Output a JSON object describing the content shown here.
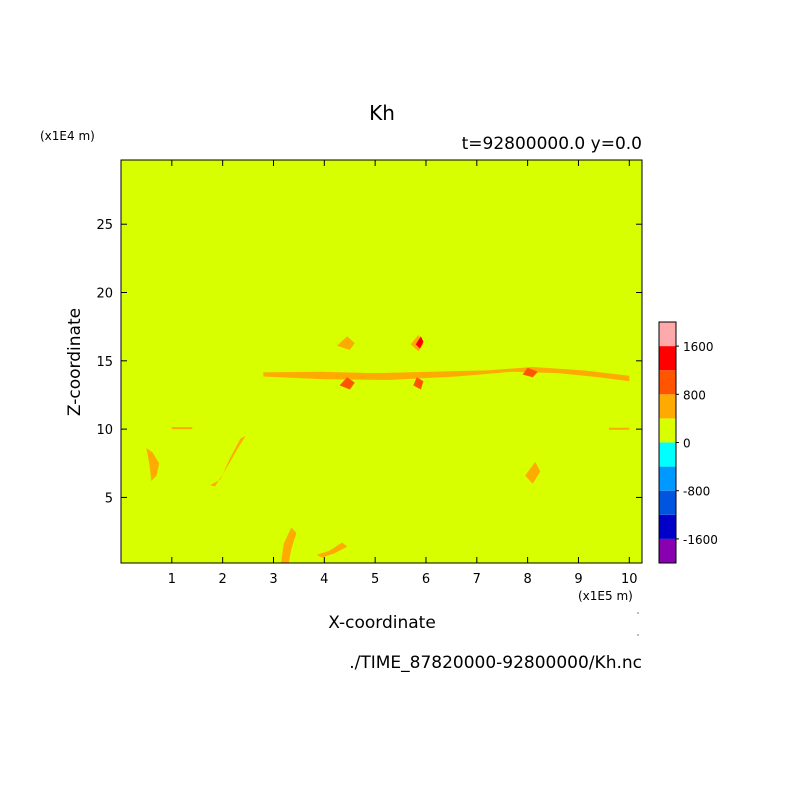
{
  "chart_data": {
    "type": "heatmap",
    "title": "Kh",
    "subtitle": "t=92800000.0 y=0.0",
    "xlabel": "X-coordinate",
    "ylabel": "Z-coordinate",
    "x_unit": "(x1E5 m)",
    "y_unit": "(x1E4 m)",
    "xlim": [
      0.0,
      10.25
    ],
    "ylim": [
      0.2,
      29.7
    ],
    "x_ticks": [
      {
        "value": 1,
        "label": "1"
      },
      {
        "value": 2,
        "label": "2"
      },
      {
        "value": 3,
        "label": "3"
      },
      {
        "value": 4,
        "label": "4"
      },
      {
        "value": 5,
        "label": "5"
      },
      {
        "value": 6,
        "label": "6"
      },
      {
        "value": 7,
        "label": "7"
      },
      {
        "value": 8,
        "label": "8"
      },
      {
        "value": 9,
        "label": "9"
      },
      {
        "value": 10,
        "label": "10"
      }
    ],
    "y_ticks": [
      {
        "value": 5,
        "label": "5"
      },
      {
        "value": 10,
        "label": "10"
      },
      {
        "value": 15,
        "label": "15"
      },
      {
        "value": 20,
        "label": "20"
      },
      {
        "value": 25,
        "label": "25"
      }
    ],
    "background_level_color": "#d7ff00",
    "colorbar": {
      "colors": [
        "#8800b0",
        "#0000c8",
        "#0055e0",
        "#0099ff",
        "#00ffff",
        "#d7ff00",
        "#ffaa00",
        "#ff5500",
        "#ff0000",
        "#ffaaaa"
      ],
      "ticks": [
        {
          "value": -1600,
          "label": "-1600"
        },
        {
          "value": -800,
          "label": "-800"
        },
        {
          "value": 0,
          "label": "0"
        },
        {
          "value": 800,
          "label": "800"
        },
        {
          "value": 1600,
          "label": "1600"
        }
      ]
    },
    "features": [
      {
        "color": "#ffaa00",
        "points": [
          [
            1.85,
            5.8
          ],
          [
            2.1,
            7.3
          ],
          [
            2.3,
            8.6
          ],
          [
            2.45,
            9.5
          ],
          [
            2.35,
            9.3
          ],
          [
            2.15,
            7.9
          ],
          [
            1.95,
            6.3
          ],
          [
            1.75,
            5.9
          ]
        ]
      },
      {
        "color": "#ffaa00",
        "points": [
          [
            0.6,
            6.2
          ],
          [
            0.55,
            7.6
          ],
          [
            0.5,
            8.6
          ],
          [
            0.62,
            8.3
          ],
          [
            0.75,
            7.5
          ],
          [
            0.7,
            6.6
          ]
        ]
      },
      {
        "color": "#ffaa00",
        "points": [
          [
            7.95,
            6.6
          ],
          [
            8.15,
            7.6
          ],
          [
            8.25,
            6.9
          ],
          [
            8.1,
            6.0
          ]
        ]
      },
      {
        "color": "#ffaa00",
        "points": [
          [
            3.15,
            0.2
          ],
          [
            3.2,
            1.6
          ],
          [
            3.35,
            2.8
          ],
          [
            3.45,
            2.4
          ],
          [
            3.35,
            1.2
          ],
          [
            3.3,
            0.2
          ]
        ]
      },
      {
        "color": "#ffaa00",
        "points": [
          [
            3.85,
            0.8
          ],
          [
            4.1,
            1.1
          ],
          [
            4.35,
            1.7
          ],
          [
            4.45,
            1.4
          ],
          [
            4.2,
            0.9
          ],
          [
            3.95,
            0.6
          ]
        ]
      },
      {
        "color": "#ffaa00",
        "points": [
          [
            2.8,
            13.85
          ],
          [
            4.0,
            13.65
          ],
          [
            5.3,
            13.6
          ],
          [
            6.6,
            13.85
          ],
          [
            7.7,
            14.2
          ],
          [
            8.6,
            14.1
          ],
          [
            9.4,
            13.8
          ],
          [
            10.0,
            13.5
          ],
          [
            10.0,
            13.9
          ],
          [
            9.1,
            14.3
          ],
          [
            8.1,
            14.55
          ],
          [
            7.2,
            14.3
          ],
          [
            6.1,
            14.2
          ],
          [
            5.0,
            14.1
          ],
          [
            3.9,
            14.2
          ],
          [
            2.8,
            14.15
          ]
        ]
      },
      {
        "color": "#ffaa00",
        "points": [
          [
            4.25,
            16.1
          ],
          [
            4.45,
            16.8
          ],
          [
            4.6,
            16.3
          ],
          [
            4.5,
            15.8
          ]
        ]
      },
      {
        "color": "#ffaa00",
        "points": [
          [
            5.7,
            16.2
          ],
          [
            5.85,
            16.9
          ],
          [
            5.95,
            16.2
          ],
          [
            5.85,
            15.7
          ]
        ]
      },
      {
        "color": "#ff5500",
        "points": [
          [
            4.3,
            13.2
          ],
          [
            4.5,
            12.9
          ],
          [
            4.6,
            13.4
          ],
          [
            4.45,
            13.8
          ]
        ]
      },
      {
        "color": "#ff5500",
        "points": [
          [
            5.75,
            13.2
          ],
          [
            5.9,
            12.9
          ],
          [
            5.95,
            13.5
          ],
          [
            5.82,
            13.8
          ]
        ]
      },
      {
        "color": "#ff5500",
        "points": [
          [
            7.9,
            14.0
          ],
          [
            8.1,
            13.8
          ],
          [
            8.2,
            14.2
          ],
          [
            8.0,
            14.5
          ]
        ]
      },
      {
        "color": "#ff0000",
        "points": [
          [
            5.8,
            16.2
          ],
          [
            5.9,
            16.8
          ],
          [
            5.95,
            16.4
          ],
          [
            5.88,
            15.9
          ]
        ]
      },
      {
        "color": "#ffaa00",
        "points": [
          [
            1.0,
            10.0
          ],
          [
            1.4,
            10.0
          ],
          [
            1.4,
            10.15
          ],
          [
            1.0,
            10.15
          ]
        ]
      },
      {
        "color": "#ffaa00",
        "points": [
          [
            9.6,
            9.95
          ],
          [
            10.0,
            9.95
          ],
          [
            10.0,
            10.1
          ],
          [
            9.6,
            10.1
          ]
        ]
      }
    ],
    "annotations": [
      "./TIME_87820000-92800000/Kh.nc"
    ]
  }
}
